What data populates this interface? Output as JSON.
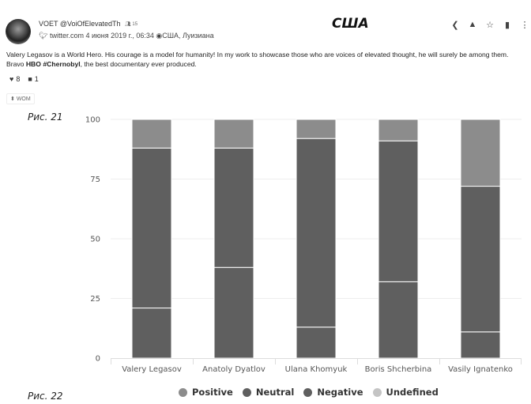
{
  "post": {
    "author_name": "VOET",
    "author_handle": "@VoiOfElevatedTh",
    "followers": "15",
    "source": "twitter.com",
    "date": "4 июня 2019 г., 06:34",
    "location": "США, Луизиана",
    "text_line1": "Valery Legasov is a World Hero. His courage is a model for humanity! In my work to showcase those who are voices of elevated thought, he will surely be among them.",
    "text_line2_pre": "Bravo ",
    "text_line2_bold1": "HBO",
    "text_line2_bold2": "#Chernobyl",
    "text_line2_post": ", the best documentary ever produced.",
    "likes": "8",
    "comments": "1",
    "tag": "WOM"
  },
  "header": {
    "title": "США"
  },
  "actions": [
    "share-icon",
    "user-icon",
    "star-icon",
    "trash-icon",
    "more-icon"
  ],
  "figures": {
    "fig1": "Рис. 21",
    "fig2": "Рис. 22"
  },
  "colors": {
    "positive": "#8c8c8c",
    "neutral": "#5f5f5f",
    "negative": "#5f5f5f",
    "undefined": "#c4c4c4"
  },
  "chart_data": {
    "type": "bar",
    "stacked": true,
    "categories": [
      "Valery Legasov",
      "Anatoly Dyatlov",
      "Ulana Khomyuk",
      "Boris Shcherbina",
      "Vasily Ignatenko"
    ],
    "series": [
      {
        "name": "Negative",
        "values": [
          21,
          38,
          13,
          32,
          11
        ]
      },
      {
        "name": "Neutral",
        "values": [
          67,
          50,
          79,
          59,
          61
        ]
      },
      {
        "name": "Positive",
        "values": [
          12,
          12,
          8,
          9,
          28
        ]
      },
      {
        "name": "Undefined",
        "values": [
          0,
          0,
          0,
          0,
          0
        ]
      }
    ],
    "legend": [
      "Positive",
      "Neutral",
      "Negative",
      "Undefined"
    ],
    "legend_position": "bottom",
    "yticks": [
      "0",
      "25",
      "50",
      "75",
      "100"
    ],
    "ylim": [
      0,
      100
    ],
    "grid": true,
    "title": "",
    "xlabel": "",
    "ylabel": ""
  }
}
